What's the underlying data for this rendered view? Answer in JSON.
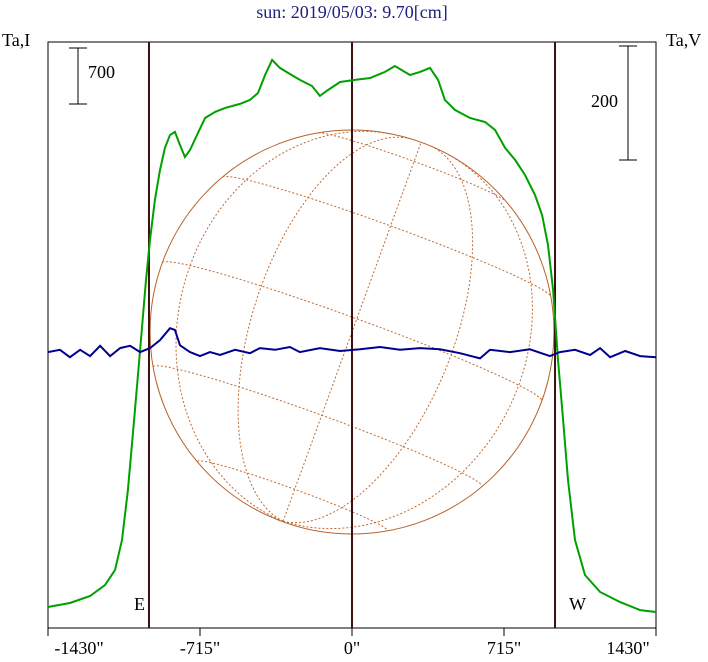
{
  "chart_data": {
    "type": "line",
    "title": "sun: 2019/05/03: 9.70[cm]",
    "ylabel": "Ta,I",
    "y2label": "Ta,V",
    "xlim": [
      -1430,
      1430
    ],
    "xticks": [
      {
        "value": -1430,
        "label": "-1430\""
      },
      {
        "value": -715,
        "label": "-715\""
      },
      {
        "value": 0,
        "label": "0\""
      },
      {
        "value": 715,
        "label": "715\""
      },
      {
        "value": 1430,
        "label": "1430\""
      }
    ],
    "ylim": [
      -262,
      7062
    ],
    "y2lim": [
      -484,
      544
    ],
    "scale_bars": [
      {
        "value": 700,
        "axis": "y"
      },
      {
        "value": 200,
        "axis": "y2"
      }
    ],
    "vlines": [
      -955,
      0,
      955
    ],
    "limb_labels": [
      "E",
      "W"
    ],
    "sun_radius": 950,
    "series": [
      {
        "name": "I",
        "color": "#00a000",
        "x": [
          -1430,
          -1327,
          -1232,
          -1162,
          -1115,
          -1082,
          -1054,
          -1025,
          -997,
          -969,
          -950,
          -927,
          -903,
          -880,
          -856,
          -833,
          -809,
          -786,
          -762,
          -729,
          -691,
          -644,
          -597,
          -527,
          -480,
          -442,
          -409,
          -376,
          -339,
          -292,
          -245,
          -188,
          -151,
          -113,
          -56,
          14,
          85,
          155,
          202,
          273,
          320,
          367,
          405,
          437,
          485,
          555,
          626,
          673,
          720,
          767,
          814,
          861,
          894,
          922,
          946,
          969,
          993,
          1016,
          1049,
          1096,
          1167,
          1261,
          1355,
          1430
        ],
        "values": [
          0,
          50,
          138,
          275,
          462,
          838,
          1462,
          2338,
          3212,
          4088,
          4588,
          5088,
          5462,
          5738,
          5900,
          5938,
          5775,
          5625,
          5712,
          5900,
          6112,
          6188,
          6238,
          6288,
          6338,
          6425,
          6650,
          6838,
          6738,
          6662,
          6588,
          6512,
          6388,
          6462,
          6562,
          6588,
          6612,
          6688,
          6762,
          6650,
          6688,
          6738,
          6588,
          6338,
          6212,
          6112,
          6062,
          5962,
          5738,
          5588,
          5400,
          5150,
          4900,
          4525,
          3962,
          3088,
          2338,
          1588,
          838,
          400,
          188,
          62,
          -38,
          -62
        ]
      },
      {
        "name": "V",
        "color": "#000090",
        "axis": "y2",
        "x": [
          -1430,
          -1374,
          -1327,
          -1279,
          -1232,
          -1185,
          -1138,
          -1091,
          -1044,
          -997,
          -950,
          -903,
          -856,
          -833,
          -809,
          -762,
          -715,
          -668,
          -621,
          -550,
          -480,
          -433,
          -362,
          -292,
          -245,
          -151,
          -56,
          38,
          132,
          226,
          320,
          414,
          508,
          602,
          649,
          743,
          837,
          931,
          978,
          1049,
          1120,
          1167,
          1214,
          1285,
          1355,
          1430
        ],
        "values": [
          0,
          4,
          -9,
          4,
          -7,
          11,
          -7,
          7,
          11,
          0,
          7,
          21,
          42,
          39,
          12,
          0,
          -7,
          0,
          -5,
          4,
          -2,
          7,
          4,
          9,
          0,
          7,
          2,
          5,
          9,
          4,
          7,
          5,
          -2,
          -11,
          4,
          0,
          5,
          -7,
          0,
          4,
          -5,
          7,
          -9,
          2,
          -7,
          -9
        ]
      }
    ]
  }
}
